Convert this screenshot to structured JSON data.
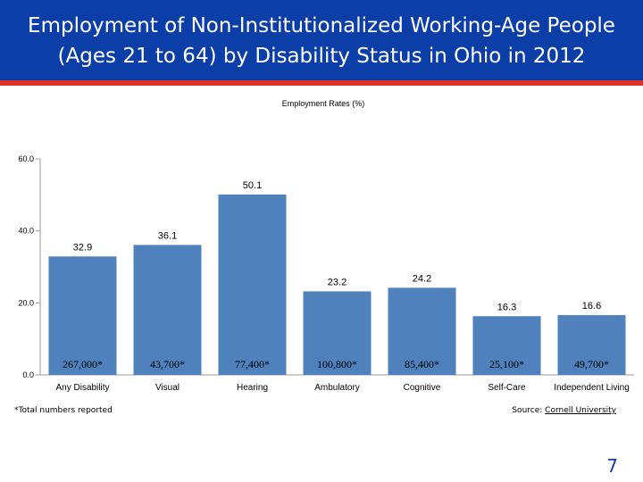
{
  "slide": {
    "title": "Employment of Non-Institutionalized Working-Age People (Ages 21 to 64) by Disability Status in Ohio in 2012",
    "footnote": "*Total numbers reported",
    "source_label": "Source: ",
    "source_link": "Cornell University",
    "page_number": "7",
    "colors": {
      "header": "#0b3ea6",
      "rule": "#e0312b",
      "bar": "#4f81bd"
    }
  },
  "chart_data": {
    "type": "bar",
    "title": "Employment Rates (%)",
    "categories": [
      "Any Disability",
      "Visual",
      "Hearing",
      "Ambulatory",
      "Cognitive",
      "Self-Care",
      "Independent Living"
    ],
    "values": [
      32.9,
      36.1,
      50.1,
      23.2,
      24.2,
      16.3,
      16.6
    ],
    "value_labels": [
      "32.9",
      "36.1",
      "50.1",
      "23.2",
      "24.2",
      "16.3",
      "16.6"
    ],
    "totals": [
      "267,000*",
      "43,700*",
      "77,400*",
      "100,800*",
      "85,400*",
      "25,100*",
      "49,700*"
    ],
    "yticks": [
      0,
      20,
      40,
      60
    ],
    "ytick_labels": [
      "0.0",
      "20.0",
      "40.0",
      "60.0"
    ],
    "ylim": [
      0,
      60
    ],
    "xlabel": "",
    "ylabel": "",
    "grid": false,
    "legend": "none"
  }
}
